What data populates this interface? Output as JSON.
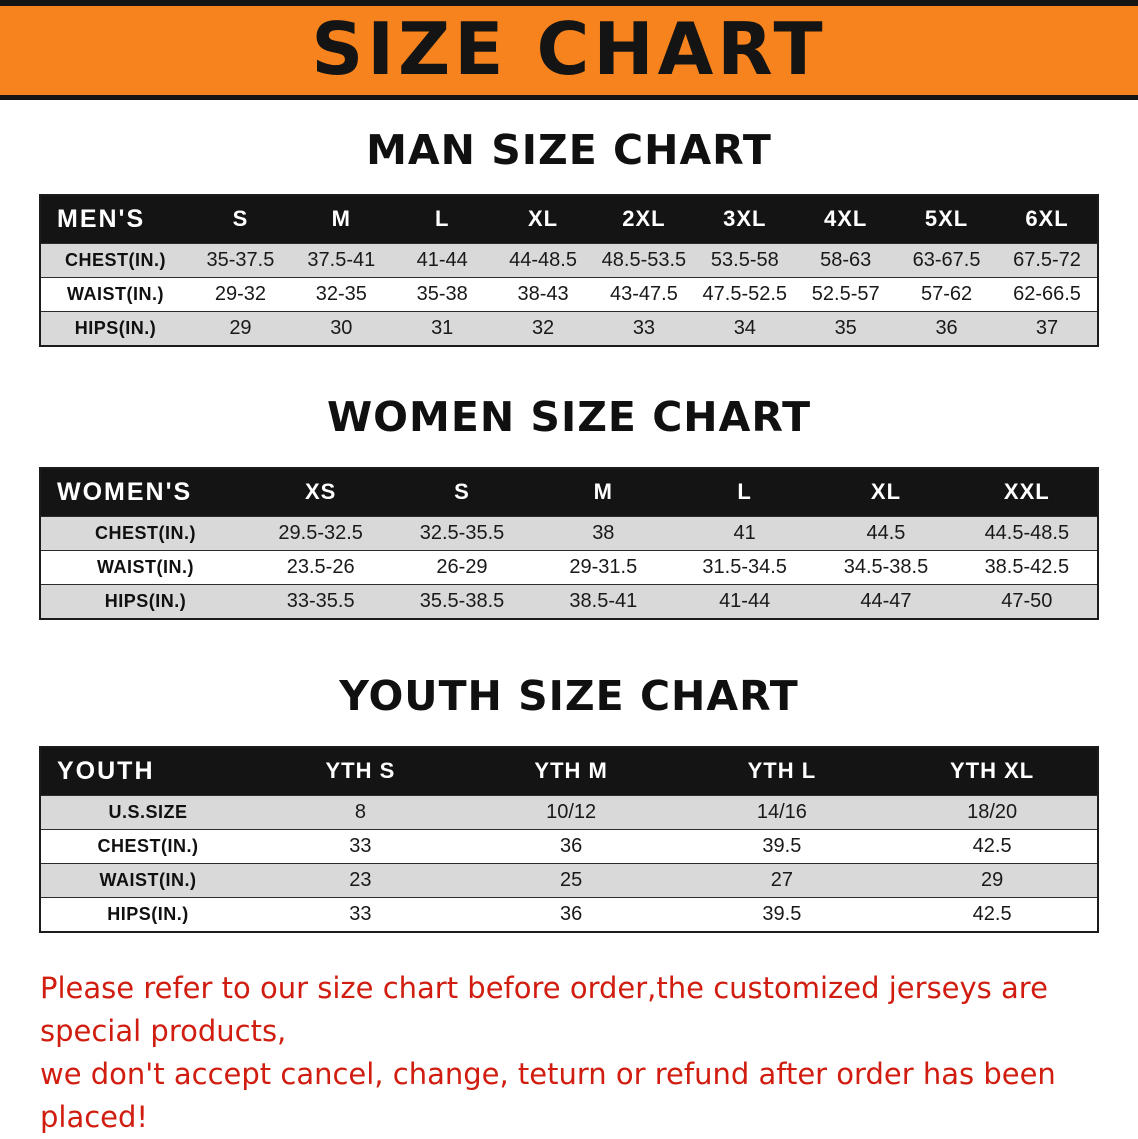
{
  "banner": {
    "title": "SIZE CHART"
  },
  "colors": {
    "banner_bg": "#f6831d",
    "header_black": "#141414",
    "row_gray": "#d9d9d9",
    "notice_red": "#d01d10"
  },
  "chart_data": [
    {
      "type": "table",
      "title": "MAN SIZE CHART",
      "header": [
        "MEN'S",
        "S",
        "M",
        "L",
        "XL",
        "2XL",
        "3XL",
        "4XL",
        "5XL",
        "6XL"
      ],
      "rows": [
        [
          "CHEST(IN.)",
          "35-37.5",
          "37.5-41",
          "41-44",
          "44-48.5",
          "48.5-53.5",
          "53.5-58",
          "58-63",
          "63-67.5",
          "67.5-72"
        ],
        [
          "WAIST(IN.)",
          "29-32",
          "32-35",
          "35-38",
          "38-43",
          "43-47.5",
          "47.5-52.5",
          "52.5-57",
          "57-62",
          "62-66.5"
        ],
        [
          "HIPS(IN.)",
          "29",
          "30",
          "31",
          "32",
          "33",
          "34",
          "35",
          "36",
          "37"
        ]
      ]
    },
    {
      "type": "table",
      "title": "WOMEN SIZE CHART",
      "header": [
        "WOMEN'S",
        "XS",
        "S",
        "M",
        "L",
        "XL",
        "XXL"
      ],
      "rows": [
        [
          "CHEST(IN.)",
          "29.5-32.5",
          "32.5-35.5",
          "38",
          "41",
          "44.5",
          "44.5-48.5"
        ],
        [
          "WAIST(IN.)",
          "23.5-26",
          "26-29",
          "29-31.5",
          "31.5-34.5",
          "34.5-38.5",
          "38.5-42.5"
        ],
        [
          "HIPS(IN.)",
          "33-35.5",
          "35.5-38.5",
          "38.5-41",
          "41-44",
          "44-47",
          "47-50"
        ]
      ]
    },
    {
      "type": "table",
      "title": "YOUTH SIZE CHART",
      "header": [
        "YOUTH",
        "YTH S",
        "YTH M",
        "YTH L",
        "YTH XL"
      ],
      "rows": [
        [
          "U.S.SIZE",
          "8",
          "10/12",
          "14/16",
          "18/20"
        ],
        [
          "CHEST(IN.)",
          "33",
          "36",
          "39.5",
          "42.5"
        ],
        [
          "WAIST(IN.)",
          "23",
          "25",
          "27",
          "29"
        ],
        [
          "HIPS(IN.)",
          "33",
          "36",
          "39.5",
          "42.5"
        ]
      ]
    }
  ],
  "notice": {
    "line1": "Please refer to our size chart before order,the customized jerseys are special products,",
    "line2": "we don't accept cancel, change, teturn or refund after order has been placed!"
  }
}
